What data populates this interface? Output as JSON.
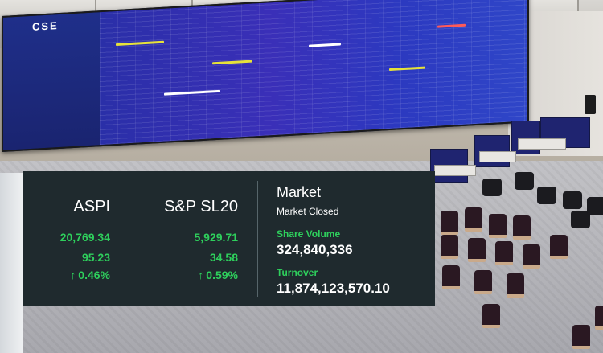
{
  "ticker": {
    "aspi": {
      "name": "ASPI",
      "value": "20,769.34",
      "change": "95.23",
      "percent": "0.46%",
      "direction_icon": "arrow-up-icon"
    },
    "sp_sl20": {
      "name": "S&P SL20",
      "value": "5,929.71",
      "change": "34.58",
      "percent": "0.59%",
      "direction_icon": "arrow-up-icon"
    },
    "market": {
      "title": "Market",
      "status": "Market Closed",
      "share_volume_label": "Share Volume",
      "share_volume": "324,840,336",
      "turnover_label": "Turnover",
      "turnover": "11,874,123,570.10"
    }
  },
  "board": {
    "logo": "CSE"
  },
  "colors": {
    "overlay_bg": "#1f2a2e",
    "positive": "#2ecf5c",
    "board_blue": "#2a2fa8",
    "partition_navy": "#1f2470"
  }
}
